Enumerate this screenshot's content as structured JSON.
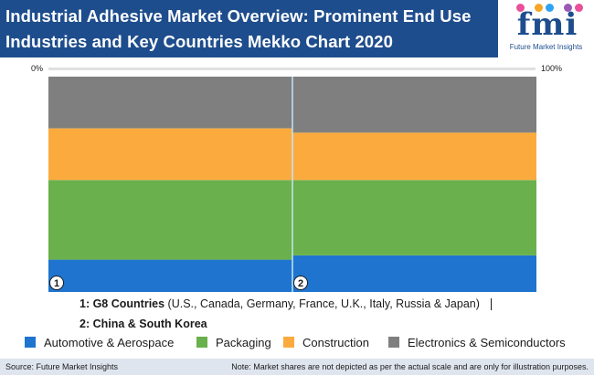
{
  "header": {
    "title_line1": "Industrial Adhesive Market Overview: Prominent End Use",
    "title_line2": "Industries and Key Countries Mekko Chart 2020"
  },
  "logo": {
    "word": "fmi",
    "subtitle": "Future Market Insights",
    "dot_colors": [
      "#e94f9b",
      "#f5a623",
      "#2ea3f2",
      "#9b59b6",
      "#e94f9b"
    ]
  },
  "axis": {
    "left_label": "0%",
    "right_label": "100%"
  },
  "chart_data": {
    "type": "mekko",
    "categories": [
      "1",
      "2"
    ],
    "column_widths": [
      0.5,
      0.5
    ],
    "series": [
      {
        "name": "Automotive & Aerospace",
        "color": "#1f74cf",
        "values": [
          0.15,
          0.17
        ]
      },
      {
        "name": "Packaging",
        "color": "#6ab04c",
        "values": [
          0.37,
          0.35
        ]
      },
      {
        "name": "Construction",
        "color": "#fbab3e",
        "values": [
          0.24,
          0.22
        ]
      },
      {
        "name": "Electronics & Semiconductors",
        "color": "#7f7f7f",
        "values": [
          0.24,
          0.26
        ]
      }
    ],
    "xlim": [
      0,
      1
    ],
    "ylim": [
      0,
      1
    ]
  },
  "notes": {
    "line1_bold": "1: G8 Countries",
    "line1_rest": " (U.S., Canada, Germany, France, U.K., Italy, Russia & Japan)",
    "line2_bold": "2: China & South Korea"
  },
  "footer": {
    "source": "Source: Future Market Insights",
    "disclaimer": "Note: Market shares are not depicted as per the actual scale and are only for illustration purposes."
  }
}
